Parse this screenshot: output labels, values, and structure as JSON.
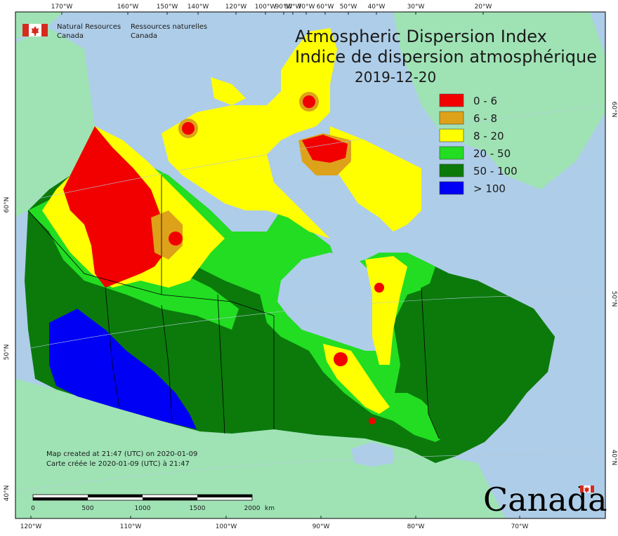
{
  "title": {
    "en": "Atmospheric Dispersion Index",
    "fr": "Indice de dispersion atmosphérique",
    "date": "2019-12-20"
  },
  "organization": {
    "en_line1": "Natural Resources",
    "en_line2": "Canada",
    "fr_line1": "Ressources naturelles",
    "fr_line2": "Canada"
  },
  "legend": [
    {
      "label": "0 - 6",
      "color": "#f20000"
    },
    {
      "label": "6 - 8",
      "color": "#dda21a"
    },
    {
      "label": "8 - 20",
      "color": "#ffff00"
    },
    {
      "label": "20 - 50",
      "color": "#22dd22"
    },
    {
      "label": "50 - 100",
      "color": "#0b7a0b"
    },
    {
      "label": "> 100",
      "color": "#0000f5"
    }
  ],
  "top_ticks": [
    "170°W",
    "160°W",
    "150°W",
    "140°W",
    "120°W",
    "100°W",
    "90°W",
    "80°W",
    "70°W",
    "60°W",
    "50°W",
    "40°W",
    "30°W",
    "20°W"
  ],
  "bottom_ticks": [
    "120°W",
    "110°W",
    "100°W",
    "90°W",
    "80°W",
    "70°W"
  ],
  "left_ticks": [
    "60°N",
    "50°N",
    "40°N"
  ],
  "right_ticks": [
    "60°N",
    "50°N",
    "40°N"
  ],
  "notes": {
    "line1": "Map created at 21:47 (UTC) on 2020-01-09",
    "line2": "Carte créée le 2020-01-09 (UTC) à 21:47"
  },
  "scale_bar": {
    "labels": [
      "0",
      "500",
      "1000",
      "1500",
      "2000"
    ],
    "unit": "km"
  },
  "wordmark": "Canada",
  "colors": {
    "ocean": "#aecde8",
    "land_other": "#9fe3b5",
    "lake": "#aecde8"
  }
}
